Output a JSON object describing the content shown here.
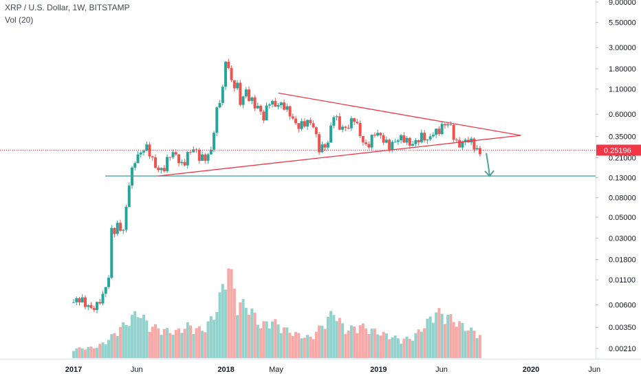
{
  "header": {
    "title": "XRP / U.S. Dollar, 1W, BITSTAMP",
    "volume_label": "Vol (20)"
  },
  "chart_data": {
    "type": "candlestick",
    "title": "XRP / U.S. Dollar, 1W, BITSTAMP",
    "y_scale": "log",
    "ylim": [
      0.0016,
      9.0
    ],
    "y_ticks": [
      "9.00000",
      "5.50000",
      "3.00000",
      "1.80000",
      "1.10000",
      "0.60000",
      "0.35000",
      "0.21000",
      "0.13000",
      "0.08000",
      "0.05000",
      "0.03000",
      "0.01800",
      "0.01100",
      "0.00600",
      "0.00350",
      "0.00210"
    ],
    "x_ticks": [
      "2017",
      "Jun",
      "2018",
      "May",
      "2019",
      "Jun",
      "2020",
      "Jun"
    ],
    "last_price": "0.25196",
    "price_series": [
      [
        "2017-01-01",
        0.0064
      ],
      [
        "2017-02-01",
        0.0062
      ],
      [
        "2017-02-26",
        0.0059
      ],
      [
        "2017-03-12",
        0.0068
      ],
      [
        "2017-03-26",
        0.012
      ],
      [
        "2017-04-02",
        0.039
      ],
      [
        "2017-04-16",
        0.042
      ],
      [
        "2017-05-01",
        0.033
      ],
      [
        "2017-05-14",
        0.11
      ],
      [
        "2017-05-28",
        0.22
      ],
      [
        "2017-06-11",
        0.25
      ],
      [
        "2017-06-25",
        0.25
      ],
      [
        "2017-07-09",
        0.19
      ],
      [
        "2017-07-23",
        0.17
      ],
      [
        "2017-08-06",
        0.17
      ],
      [
        "2017-08-20",
        0.21
      ],
      [
        "2017-09-03",
        0.22
      ],
      [
        "2017-09-17",
        0.19
      ],
      [
        "2017-10-01",
        0.23
      ],
      [
        "2017-10-15",
        0.24
      ],
      [
        "2017-10-29",
        0.21
      ],
      [
        "2017-11-12",
        0.23
      ],
      [
        "2017-11-26",
        0.25
      ],
      [
        "2017-12-10",
        0.6
      ],
      [
        "2017-12-17",
        0.8
      ],
      [
        "2017-12-24",
        1.1
      ],
      [
        "2017-12-31",
        2.3
      ],
      [
        "2018-01-07",
        2.1
      ],
      [
        "2018-01-14",
        1.35
      ],
      [
        "2018-01-28",
        1.12
      ],
      [
        "2018-02-04",
        0.72
      ],
      [
        "2018-02-18",
        1.05
      ],
      [
        "2018-03-04",
        0.9
      ],
      [
        "2018-03-18",
        0.7
      ],
      [
        "2018-04-01",
        0.5
      ],
      [
        "2018-04-15",
        0.85
      ],
      [
        "2018-05-06",
        0.8
      ],
      [
        "2018-05-27",
        0.62
      ],
      [
        "2018-06-17",
        0.51
      ],
      [
        "2018-07-08",
        0.47
      ],
      [
        "2018-07-29",
        0.44
      ],
      [
        "2018-08-12",
        0.29
      ],
      [
        "2018-09-02",
        0.29
      ],
      [
        "2018-09-16",
        0.56
      ],
      [
        "2018-09-30",
        0.47
      ],
      [
        "2018-10-21",
        0.46
      ],
      [
        "2018-11-04",
        0.5
      ],
      [
        "2018-11-18",
        0.36
      ],
      [
        "2018-12-02",
        0.3
      ],
      [
        "2018-12-23",
        0.36
      ],
      [
        "2019-01-06",
        0.33
      ],
      [
        "2019-01-27",
        0.31
      ],
      [
        "2019-02-24",
        0.31
      ],
      [
        "2019-03-24",
        0.32
      ],
      [
        "2019-04-14",
        0.33
      ],
      [
        "2019-04-28",
        0.3
      ],
      [
        "2019-05-12",
        0.42
      ],
      [
        "2019-05-26",
        0.43
      ],
      [
        "2019-06-16",
        0.44
      ],
      [
        "2019-06-23",
        0.42
      ],
      [
        "2019-07-07",
        0.32
      ],
      [
        "2019-07-21",
        0.31
      ],
      [
        "2019-08-04",
        0.3
      ],
      [
        "2019-08-18",
        0.27
      ],
      [
        "2019-09-01",
        0.25196
      ]
    ],
    "volume_series": [
      [
        "2017-01-01",
        0.1
      ],
      [
        "2017-02-26",
        0.12
      ],
      [
        "2017-03-26",
        0.2
      ],
      [
        "2017-04-16",
        0.3
      ],
      [
        "2017-05-14",
        0.4
      ],
      [
        "2017-06-04",
        0.5
      ],
      [
        "2017-07-02",
        0.35
      ],
      [
        "2017-08-06",
        0.3
      ],
      [
        "2017-09-03",
        0.28
      ],
      [
        "2017-10-01",
        0.35
      ],
      [
        "2017-11-05",
        0.3
      ],
      [
        "2017-12-03",
        0.45
      ],
      [
        "2017-12-24",
        0.75
      ],
      [
        "2018-01-07",
        1.0
      ],
      [
        "2018-01-28",
        0.6
      ],
      [
        "2018-02-25",
        0.55
      ],
      [
        "2018-03-25",
        0.35
      ],
      [
        "2018-04-22",
        0.4
      ],
      [
        "2018-05-27",
        0.3
      ],
      [
        "2018-06-24",
        0.25
      ],
      [
        "2018-07-22",
        0.22
      ],
      [
        "2018-08-19",
        0.35
      ],
      [
        "2018-09-16",
        0.5
      ],
      [
        "2018-10-14",
        0.3
      ],
      [
        "2018-11-18",
        0.35
      ],
      [
        "2018-12-16",
        0.3
      ],
      [
        "2019-01-20",
        0.25
      ],
      [
        "2019-02-24",
        0.2
      ],
      [
        "2019-03-24",
        0.22
      ],
      [
        "2019-04-21",
        0.35
      ],
      [
        "2019-05-19",
        0.5
      ],
      [
        "2019-06-16",
        0.45
      ],
      [
        "2019-07-21",
        0.35
      ],
      [
        "2019-09-01",
        0.25
      ]
    ],
    "trendlines": [
      {
        "from": [
          "2018-05-06",
          1.0
        ],
        "to": [
          "2019-12-08",
          0.36
        ]
      },
      {
        "from": [
          "2017-07-23",
          0.135
        ],
        "to": [
          "2019-12-08",
          0.36
        ]
      }
    ],
    "horizontal_levels": [
      0.135,
      0.25196
    ],
    "colors": {
      "up": "#26a69a",
      "down": "#ef5350",
      "trendline": "#f23645",
      "level": "#4aa39a",
      "price_line": "#f23645",
      "text": "#131722",
      "grid": "#f0f3fa"
    },
    "grid": false,
    "legend": "none"
  }
}
